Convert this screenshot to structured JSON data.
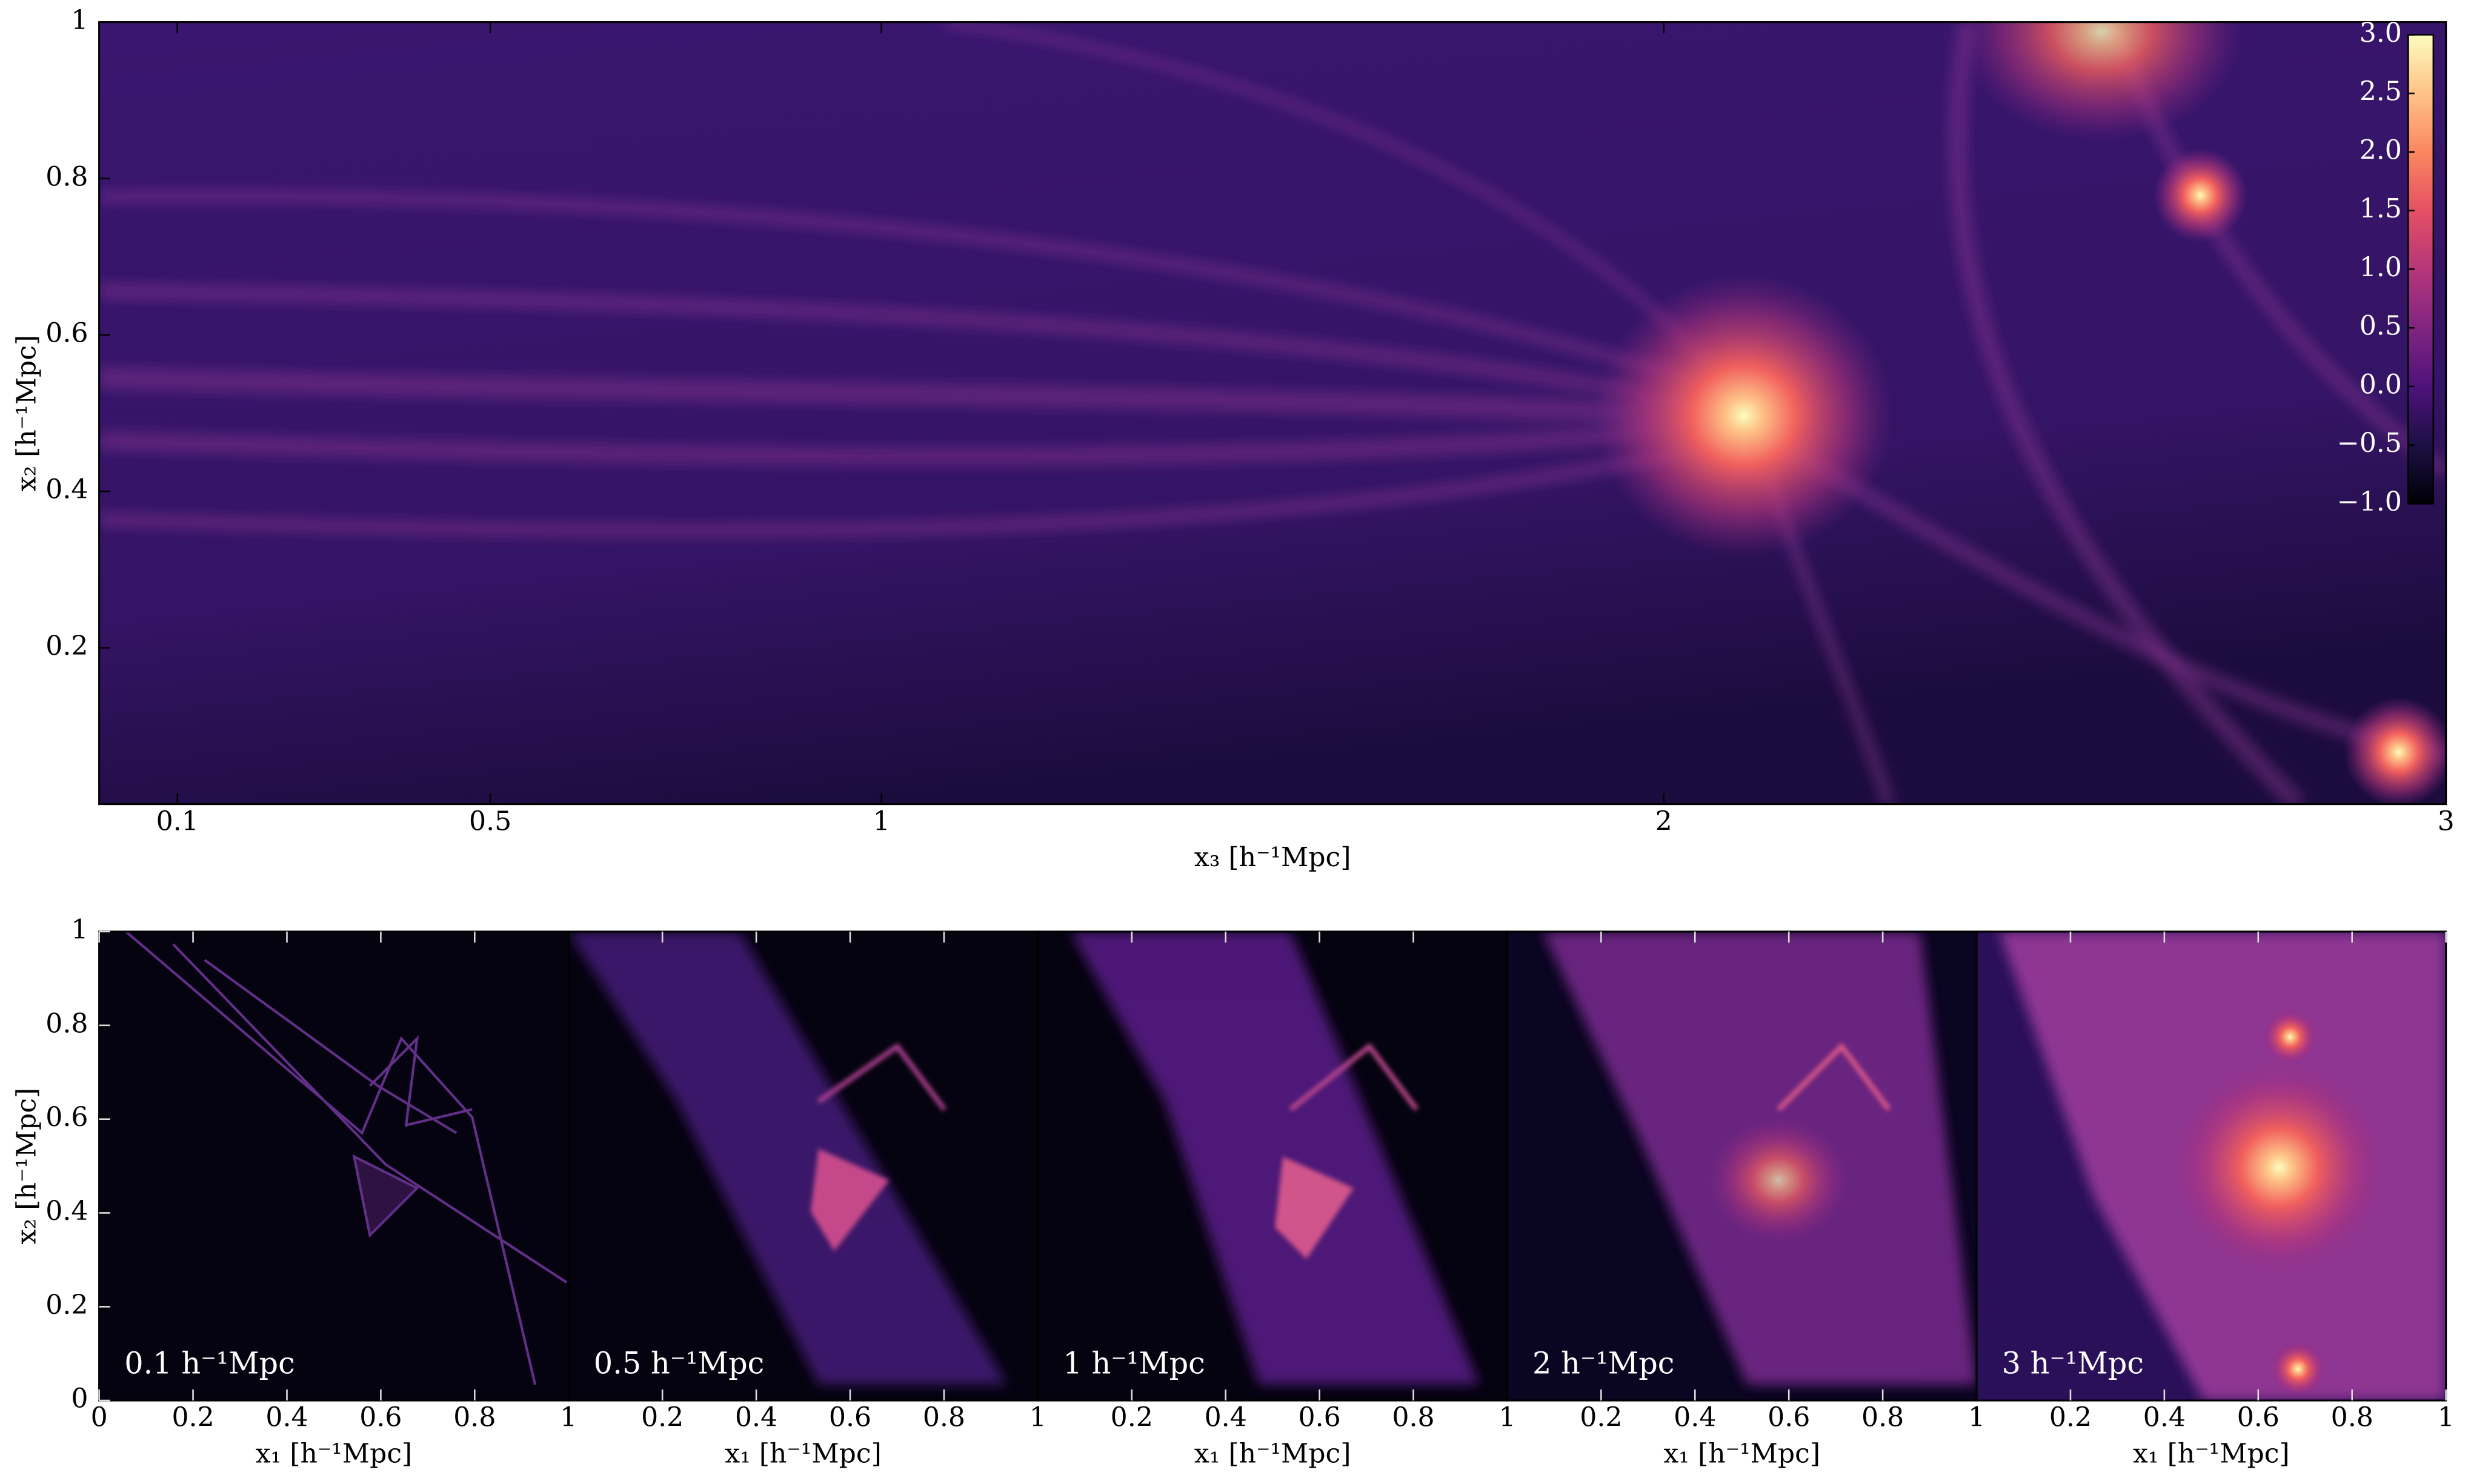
{
  "chart_data": [
    {
      "type": "image",
      "xlabel": "x₃ [h⁻¹Mpc]",
      "ylabel": "x₂ [h⁻¹Mpc]",
      "xlim": [
        0,
        3
      ],
      "ylim": [
        0,
        1
      ],
      "xticks": [
        0.1,
        0.5,
        1,
        2,
        3
      ],
      "yticks": [
        0.2,
        0.4,
        0.6,
        0.8,
        1
      ],
      "colorbar": {
        "colormap": "magma",
        "clim": [
          -1,
          3
        ],
        "ticks": [
          {
            "value": -1,
            "label": "−1.0"
          },
          {
            "value": -0.5,
            "label": "−0.5"
          },
          {
            "value": 0,
            "label": "0.0"
          },
          {
            "value": 0.5,
            "label": "0.5"
          },
          {
            "value": 1,
            "label": "1.0"
          },
          {
            "value": 1.5,
            "label": "1.5"
          },
          {
            "value": 2,
            "label": "2.0"
          },
          {
            "value": 2.5,
            "label": "2.5"
          },
          {
            "value": 3,
            "label": "3.0"
          }
        ]
      }
    },
    {
      "type": "image",
      "label": "0.1 h⁻¹Mpc",
      "xlabel": "x₁ [h⁻¹Mpc]",
      "ylabel": "x₂ [h⁻¹Mpc]",
      "xlim": [
        0,
        1
      ],
      "ylim": [
        0,
        1
      ],
      "xticks": [
        0,
        0.2,
        0.4,
        0.6,
        0.8,
        1
      ],
      "yticks": [
        0,
        0.2,
        0.4,
        0.6,
        0.8,
        1
      ]
    },
    {
      "type": "image",
      "label": "0.5 h⁻¹Mpc",
      "xlabel": "x₁ [h⁻¹Mpc]",
      "xlim": [
        0,
        1
      ],
      "ylim": [
        0,
        1
      ],
      "xticks": [
        0.2,
        0.4,
        0.6,
        0.8,
        1
      ]
    },
    {
      "type": "image",
      "label": "1 h⁻¹Mpc",
      "xlabel": "x₁ [h⁻¹Mpc]",
      "xlim": [
        0,
        1
      ],
      "ylim": [
        0,
        1
      ],
      "xticks": [
        0.2,
        0.4,
        0.6,
        0.8,
        1
      ]
    },
    {
      "type": "image",
      "label": "2 h⁻¹Mpc",
      "xlabel": "x₁ [h⁻¹Mpc]",
      "xlim": [
        0,
        1
      ],
      "ylim": [
        0,
        1
      ],
      "xticks": [
        0.2,
        0.4,
        0.6,
        0.8,
        1
      ]
    },
    {
      "type": "image",
      "label": "3 h⁻¹Mpc",
      "xlabel": "x₁ [h⁻¹Mpc]",
      "xlim": [
        0,
        1
      ],
      "ylim": [
        0,
        1
      ],
      "xticks": [
        0.2,
        0.4,
        0.6,
        0.8,
        1
      ]
    }
  ]
}
